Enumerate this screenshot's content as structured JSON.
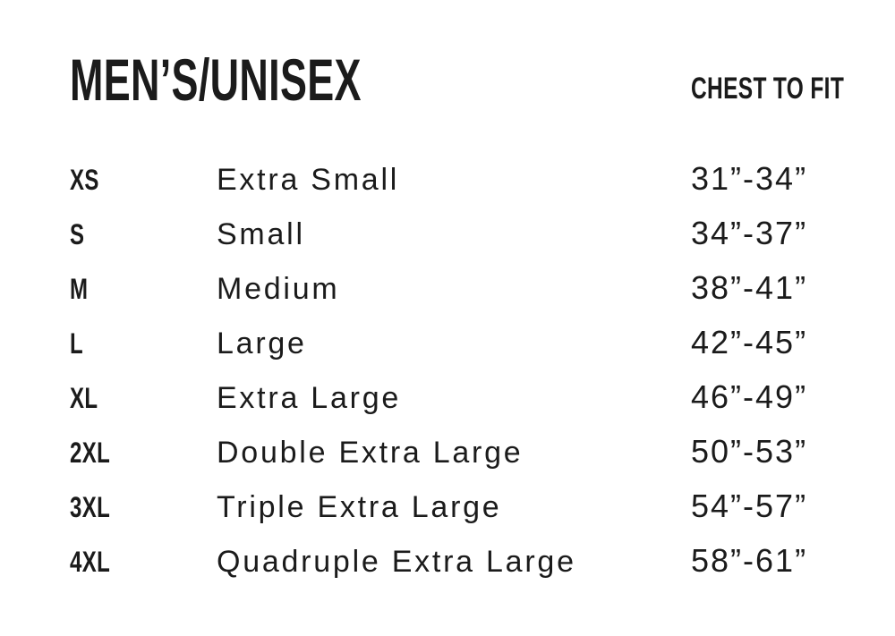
{
  "colors": {
    "text": "#1b1b1b",
    "background": "#ffffff"
  },
  "header": {
    "title": "MEN’S/UNISEX",
    "chest_column_label": "CHEST TO FIT"
  },
  "table": {
    "rows": [
      {
        "code": "XS",
        "name": "Extra Small",
        "chest": "31”-34”"
      },
      {
        "code": "S",
        "name": "Small",
        "chest": "34”-37”"
      },
      {
        "code": "M",
        "name": "Medium",
        "chest": "38”-41”"
      },
      {
        "code": "L",
        "name": "Large",
        "chest": "42”-45”"
      },
      {
        "code": "XL",
        "name": "Extra Large",
        "chest": "46”-49”"
      },
      {
        "code": "2XL",
        "name": "Double Extra Large",
        "chest": "50”-53”"
      },
      {
        "code": "3XL",
        "name": "Triple Extra Large",
        "chest": "54”-57”"
      },
      {
        "code": "4XL",
        "name": "Quadruple Extra Large",
        "chest": "58”-61”"
      }
    ]
  },
  "chart_data": {
    "type": "table",
    "title": "MEN’S/UNISEX",
    "visible_column_headers": [
      "",
      "",
      "CHEST TO FIT"
    ],
    "units": "inches",
    "rows": [
      {
        "size_code": "XS",
        "size_name": "Extra Small",
        "chest_display": "31”-34”",
        "chest_min_in": 31,
        "chest_max_in": 34
      },
      {
        "size_code": "S",
        "size_name": "Small",
        "chest_display": "34”-37”",
        "chest_min_in": 34,
        "chest_max_in": 37
      },
      {
        "size_code": "M",
        "size_name": "Medium",
        "chest_display": "38”-41”",
        "chest_min_in": 38,
        "chest_max_in": 41
      },
      {
        "size_code": "L",
        "size_name": "Large",
        "chest_display": "42”-45”",
        "chest_min_in": 42,
        "chest_max_in": 45
      },
      {
        "size_code": "XL",
        "size_name": "Extra Large",
        "chest_display": "46”-49”",
        "chest_min_in": 46,
        "chest_max_in": 49
      },
      {
        "size_code": "2XL",
        "size_name": "Double Extra Large",
        "chest_display": "50”-53”",
        "chest_min_in": 50,
        "chest_max_in": 53
      },
      {
        "size_code": "3XL",
        "size_name": "Triple Extra Large",
        "chest_display": "54”-57”",
        "chest_min_in": 54,
        "chest_max_in": 57
      },
      {
        "size_code": "4XL",
        "size_name": "Quadruple Extra Large",
        "chest_display": "58”-61”",
        "chest_min_in": 58,
        "chest_max_in": 61
      }
    ]
  }
}
